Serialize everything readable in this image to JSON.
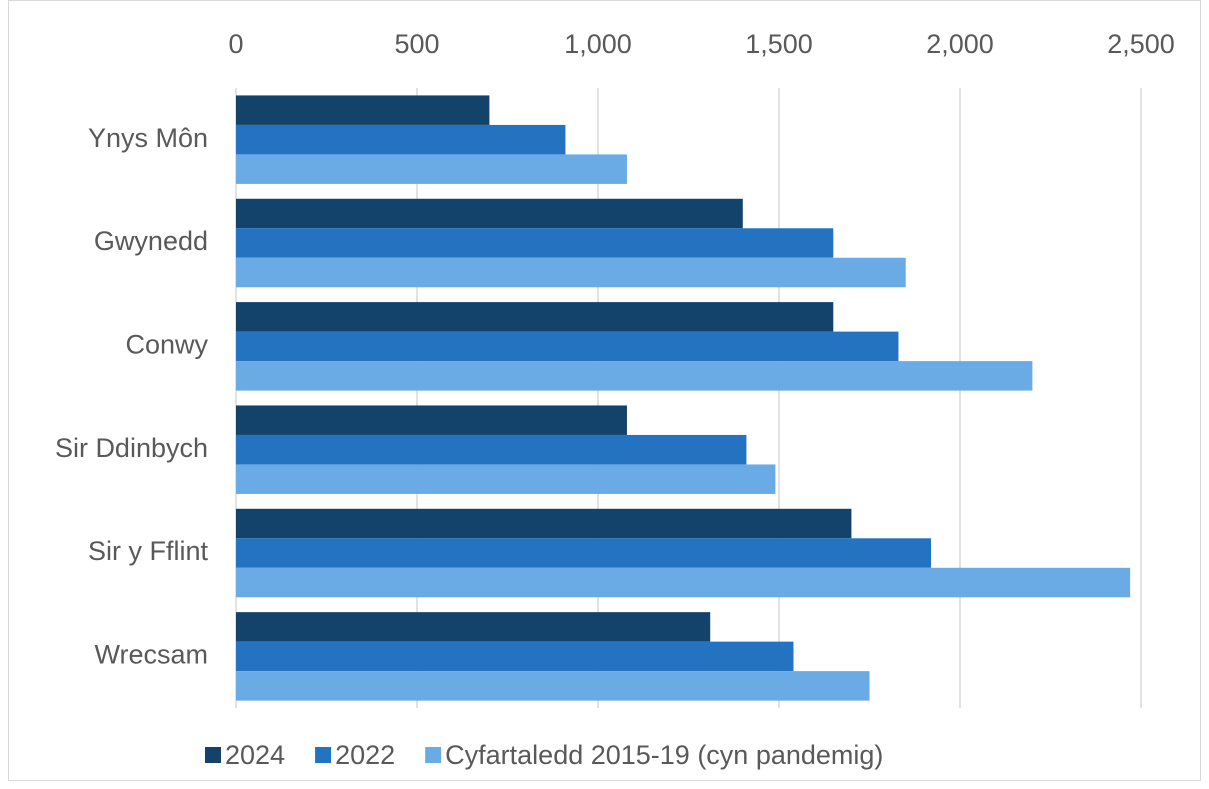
{
  "chart_data": {
    "type": "hbar",
    "categories": [
      "Ynys Môn",
      "Gwynedd",
      "Conwy",
      "Sir Ddinbych",
      "Sir y Fflint",
      "Wrecsam"
    ],
    "series": [
      {
        "name": "2024",
        "color": "#13426b",
        "values": [
          700,
          1400,
          1650,
          1080,
          1700,
          1310
        ]
      },
      {
        "name": "2022",
        "color": "#2473c1",
        "values": [
          910,
          1650,
          1830,
          1410,
          1920,
          1540
        ]
      },
      {
        "name": "Cyfartaledd 2015-19 (cyn pandemig)",
        "color": "#6aabe6",
        "values": [
          1080,
          1850,
          2200,
          1490,
          2470,
          1750
        ]
      }
    ],
    "xlim": [
      0,
      2500
    ],
    "xticks": [
      0,
      500,
      {
        "value": 1000,
        "label": "1,000"
      },
      {
        "value": 1500,
        "label": "1,500"
      },
      {
        "value": 2000,
        "label": "2,000"
      },
      {
        "value": 2500,
        "label": "2,500"
      }
    ],
    "grid": true,
    "legend": "bottom"
  }
}
